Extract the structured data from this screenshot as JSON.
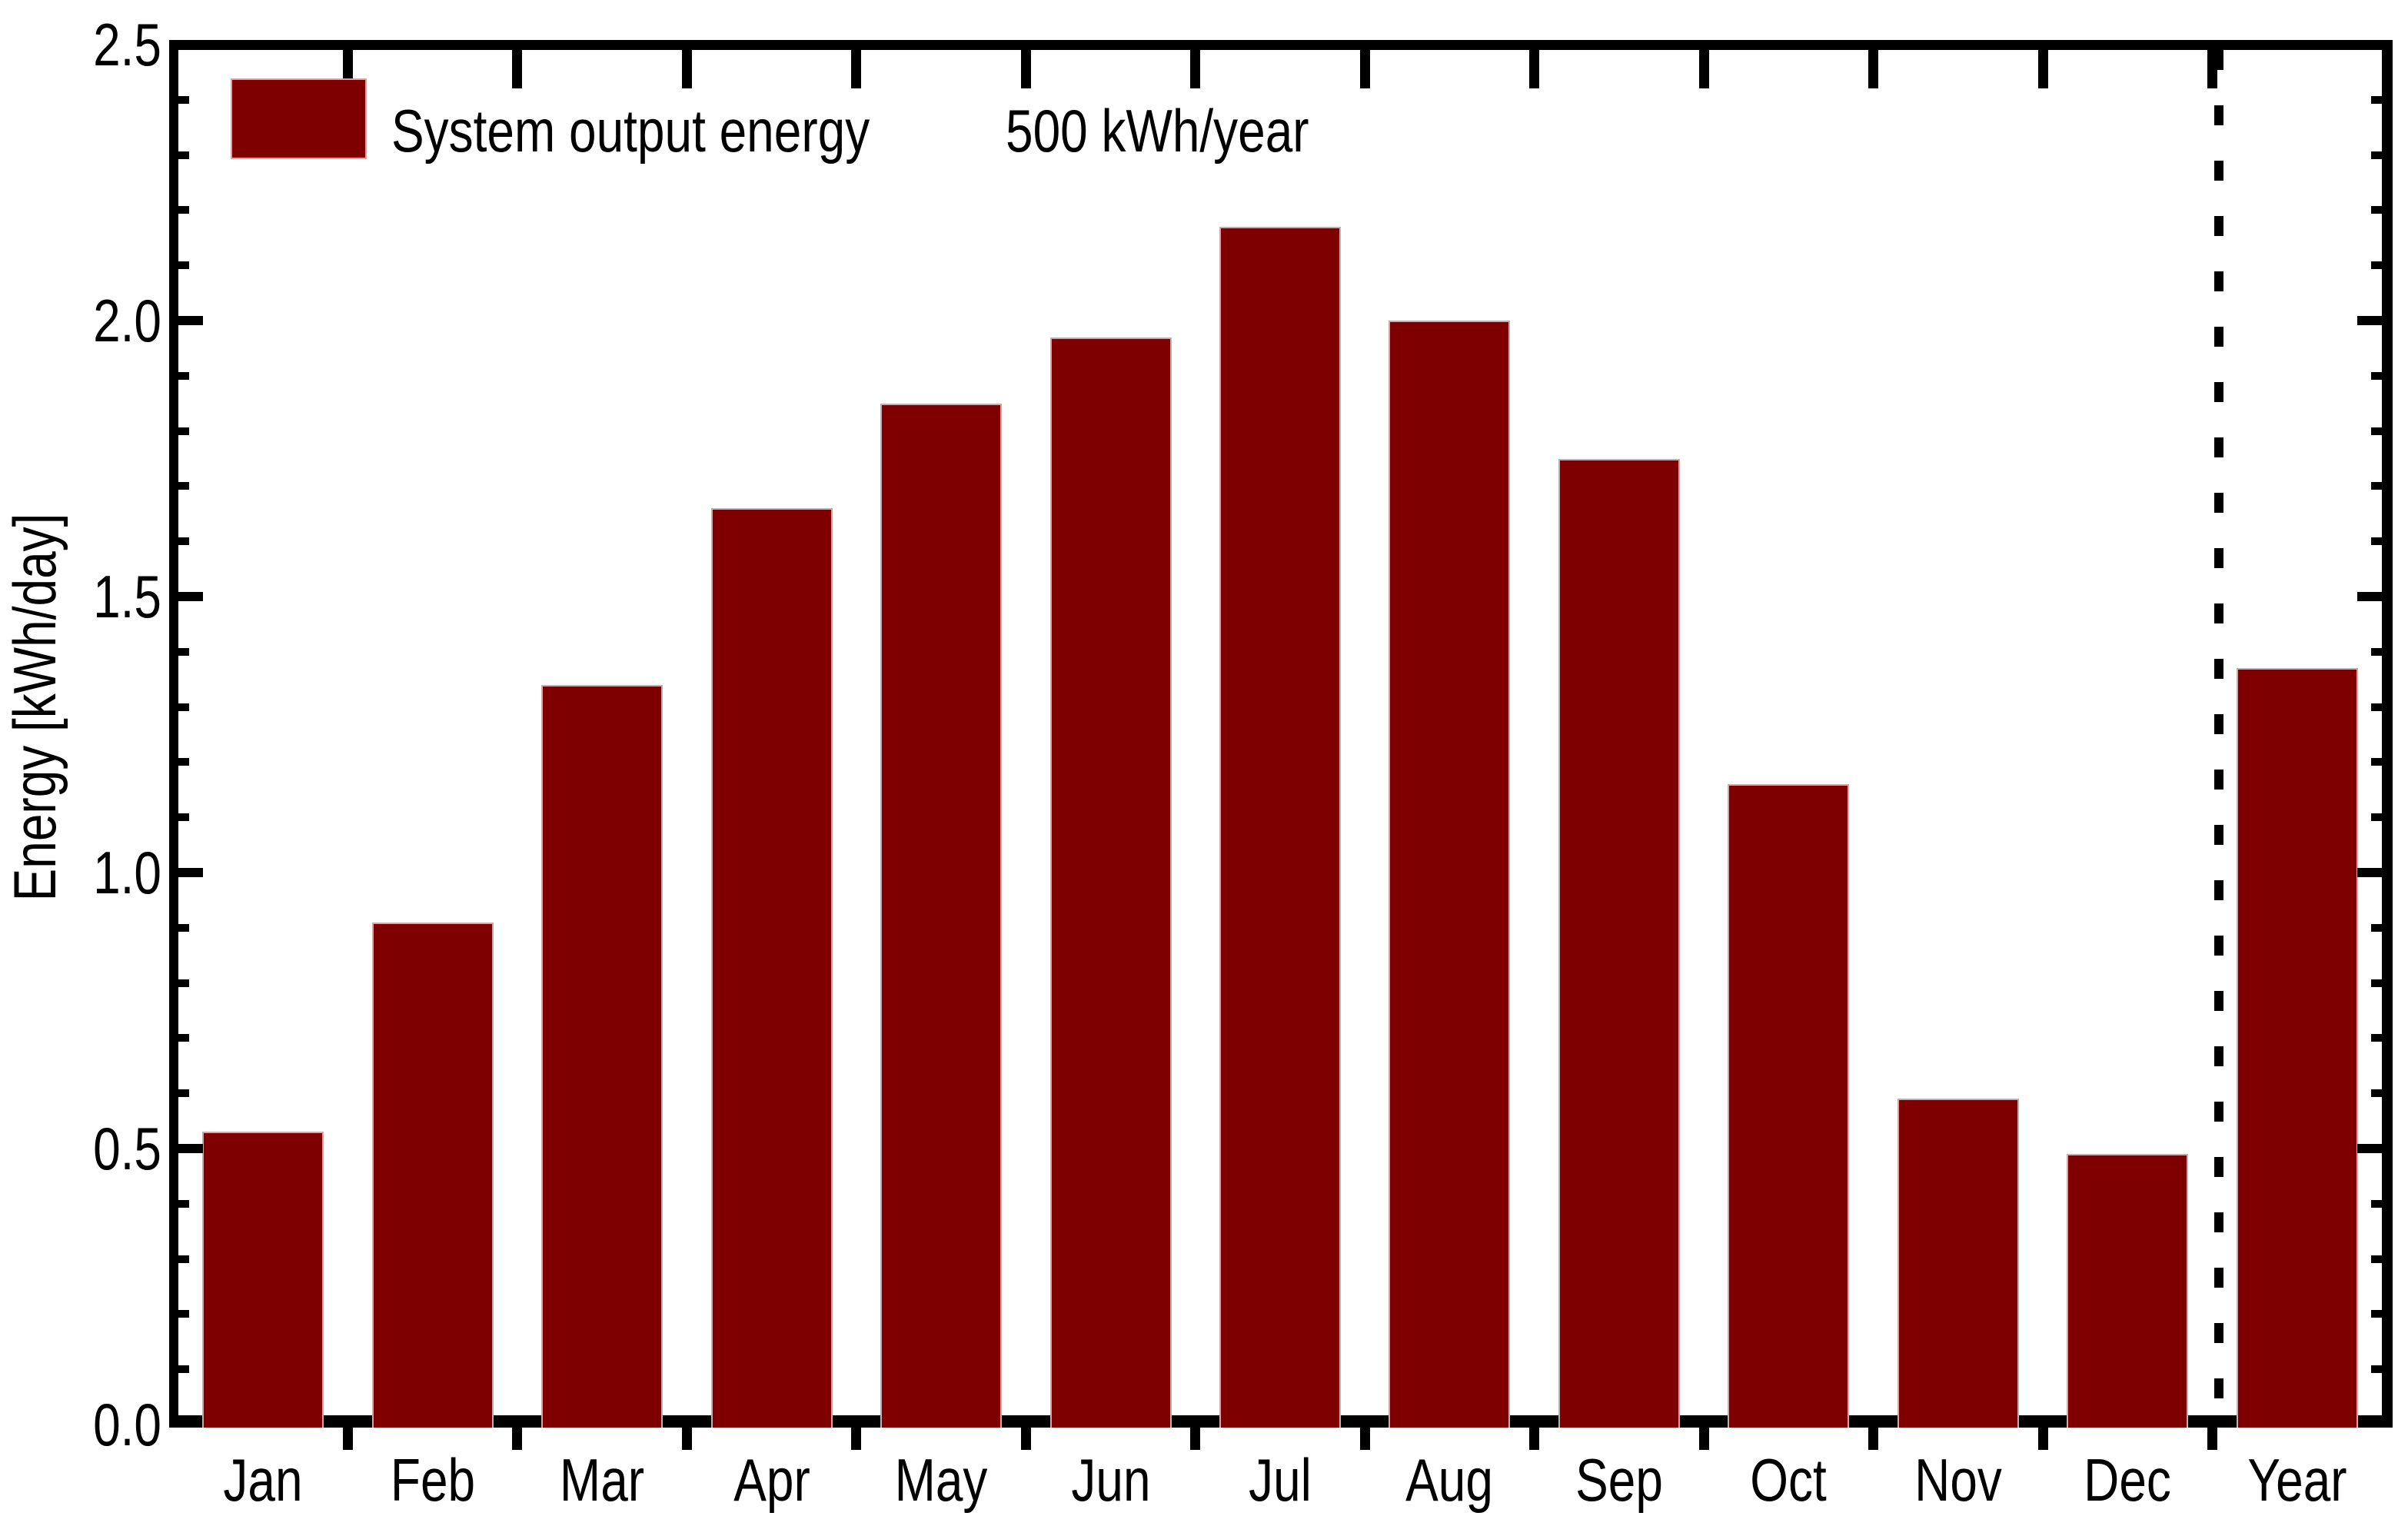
{
  "chart_data": {
    "type": "bar",
    "title": "",
    "categories": [
      "Jan",
      "Feb",
      "Mar",
      "Apr",
      "May",
      "Jun",
      "Jul",
      "Aug",
      "Sep",
      "Oct",
      "Nov",
      "Dec",
      "Year"
    ],
    "values": [
      0.53,
      0.91,
      1.34,
      1.66,
      1.85,
      1.97,
      2.17,
      2.0,
      1.75,
      1.16,
      0.59,
      0.49,
      1.37
    ],
    "ylabel": "Energy [kWh/day]",
    "xlabel": "",
    "ylim": [
      0,
      2.5
    ],
    "y_major_step": 0.5,
    "y_minor_step": 0.1,
    "y_tick_labels": [
      "0.0",
      "0.5",
      "1.0",
      "1.5",
      "2.0",
      "2.5"
    ],
    "legend": {
      "label": "System output energy",
      "value": "500 kWh/year",
      "position": "top-left"
    },
    "separator_after": "Dec",
    "bar_color": "#7e0000",
    "axis_color": "#000000",
    "background": "#ffffff",
    "grid": false
  }
}
